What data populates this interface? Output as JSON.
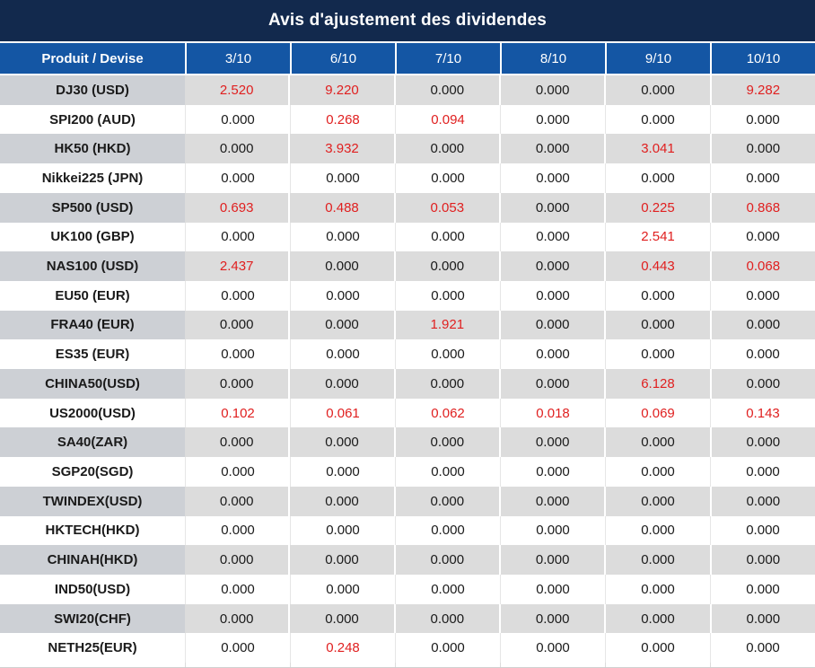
{
  "chart_data": {
    "type": "table",
    "title": "Avis d'ajustement des dividendes",
    "columns": [
      "Produit / Devise",
      "3/10",
      "6/10",
      "7/10",
      "8/10",
      "9/10",
      "10/10"
    ],
    "rows": [
      {
        "product": "DJ30 (USD)",
        "values": [
          "2.520",
          "9.220",
          "0.000",
          "0.000",
          "0.000",
          "9.282"
        ],
        "red": [
          true,
          true,
          false,
          false,
          false,
          true
        ]
      },
      {
        "product": "SPI200 (AUD)",
        "values": [
          "0.000",
          "0.268",
          "0.094",
          "0.000",
          "0.000",
          "0.000"
        ],
        "red": [
          false,
          true,
          true,
          false,
          false,
          false
        ]
      },
      {
        "product": "HK50 (HKD)",
        "values": [
          "0.000",
          "3.932",
          "0.000",
          "0.000",
          "3.041",
          "0.000"
        ],
        "red": [
          false,
          true,
          false,
          false,
          true,
          false
        ]
      },
      {
        "product": "Nikkei225 (JPN)",
        "values": [
          "0.000",
          "0.000",
          "0.000",
          "0.000",
          "0.000",
          "0.000"
        ],
        "red": [
          false,
          false,
          false,
          false,
          false,
          false
        ]
      },
      {
        "product": "SP500 (USD)",
        "values": [
          "0.693",
          "0.488",
          "0.053",
          "0.000",
          "0.225",
          "0.868"
        ],
        "red": [
          true,
          true,
          true,
          false,
          true,
          true
        ]
      },
      {
        "product": "UK100 (GBP)",
        "values": [
          "0.000",
          "0.000",
          "0.000",
          "0.000",
          "2.541",
          "0.000"
        ],
        "red": [
          false,
          false,
          false,
          false,
          true,
          false
        ]
      },
      {
        "product": "NAS100 (USD)",
        "values": [
          "2.437",
          "0.000",
          "0.000",
          "0.000",
          "0.443",
          "0.068"
        ],
        "red": [
          true,
          false,
          false,
          false,
          true,
          true
        ]
      },
      {
        "product": "EU50 (EUR)",
        "values": [
          "0.000",
          "0.000",
          "0.000",
          "0.000",
          "0.000",
          "0.000"
        ],
        "red": [
          false,
          false,
          false,
          false,
          false,
          false
        ]
      },
      {
        "product": "FRA40 (EUR)",
        "values": [
          "0.000",
          "0.000",
          "1.921",
          "0.000",
          "0.000",
          "0.000"
        ],
        "red": [
          false,
          false,
          true,
          false,
          false,
          false
        ]
      },
      {
        "product": "ES35 (EUR)",
        "values": [
          "0.000",
          "0.000",
          "0.000",
          "0.000",
          "0.000",
          "0.000"
        ],
        "red": [
          false,
          false,
          false,
          false,
          false,
          false
        ]
      },
      {
        "product": "CHINA50(USD)",
        "values": [
          "0.000",
          "0.000",
          "0.000",
          "0.000",
          "6.128",
          "0.000"
        ],
        "red": [
          false,
          false,
          false,
          false,
          true,
          false
        ]
      },
      {
        "product": "US2000(USD)",
        "values": [
          "0.102",
          "0.061",
          "0.062",
          "0.018",
          "0.069",
          "0.143"
        ],
        "red": [
          true,
          true,
          true,
          true,
          true,
          true
        ]
      },
      {
        "product": "SA40(ZAR)",
        "values": [
          "0.000",
          "0.000",
          "0.000",
          "0.000",
          "0.000",
          "0.000"
        ],
        "red": [
          false,
          false,
          false,
          false,
          false,
          false
        ]
      },
      {
        "product": "SGP20(SGD)",
        "values": [
          "0.000",
          "0.000",
          "0.000",
          "0.000",
          "0.000",
          "0.000"
        ],
        "red": [
          false,
          false,
          false,
          false,
          false,
          false
        ]
      },
      {
        "product": "TWINDEX(USD)",
        "values": [
          "0.000",
          "0.000",
          "0.000",
          "0.000",
          "0.000",
          "0.000"
        ],
        "red": [
          false,
          false,
          false,
          false,
          false,
          false
        ]
      },
      {
        "product": "HKTECH(HKD)",
        "values": [
          "0.000",
          "0.000",
          "0.000",
          "0.000",
          "0.000",
          "0.000"
        ],
        "red": [
          false,
          false,
          false,
          false,
          false,
          false
        ]
      },
      {
        "product": "CHINAH(HKD)",
        "values": [
          "0.000",
          "0.000",
          "0.000",
          "0.000",
          "0.000",
          "0.000"
        ],
        "red": [
          false,
          false,
          false,
          false,
          false,
          false
        ]
      },
      {
        "product": "IND50(USD)",
        "values": [
          "0.000",
          "0.000",
          "0.000",
          "0.000",
          "0.000",
          "0.000"
        ],
        "red": [
          false,
          false,
          false,
          false,
          false,
          false
        ]
      },
      {
        "product": "SWI20(CHF)",
        "values": [
          "0.000",
          "0.000",
          "0.000",
          "0.000",
          "0.000",
          "0.000"
        ],
        "red": [
          false,
          false,
          false,
          false,
          false,
          false
        ]
      },
      {
        "product": "NETH25(EUR)",
        "values": [
          "0.000",
          "0.248",
          "0.000",
          "0.000",
          "0.000",
          "0.000"
        ],
        "red": [
          false,
          true,
          false,
          false,
          false,
          false
        ]
      }
    ],
    "layout": {
      "stripe_first_row": true,
      "grid": "alternating-stripes"
    }
  },
  "colors": {
    "title_bg": "#12294d",
    "header_bg": "#1456a4",
    "stripe_label_bg": "#cdd0d5",
    "stripe_cell_bg": "#dcdcdc",
    "red_value": "#e01f1f",
    "text": "#1a1a1a"
  }
}
